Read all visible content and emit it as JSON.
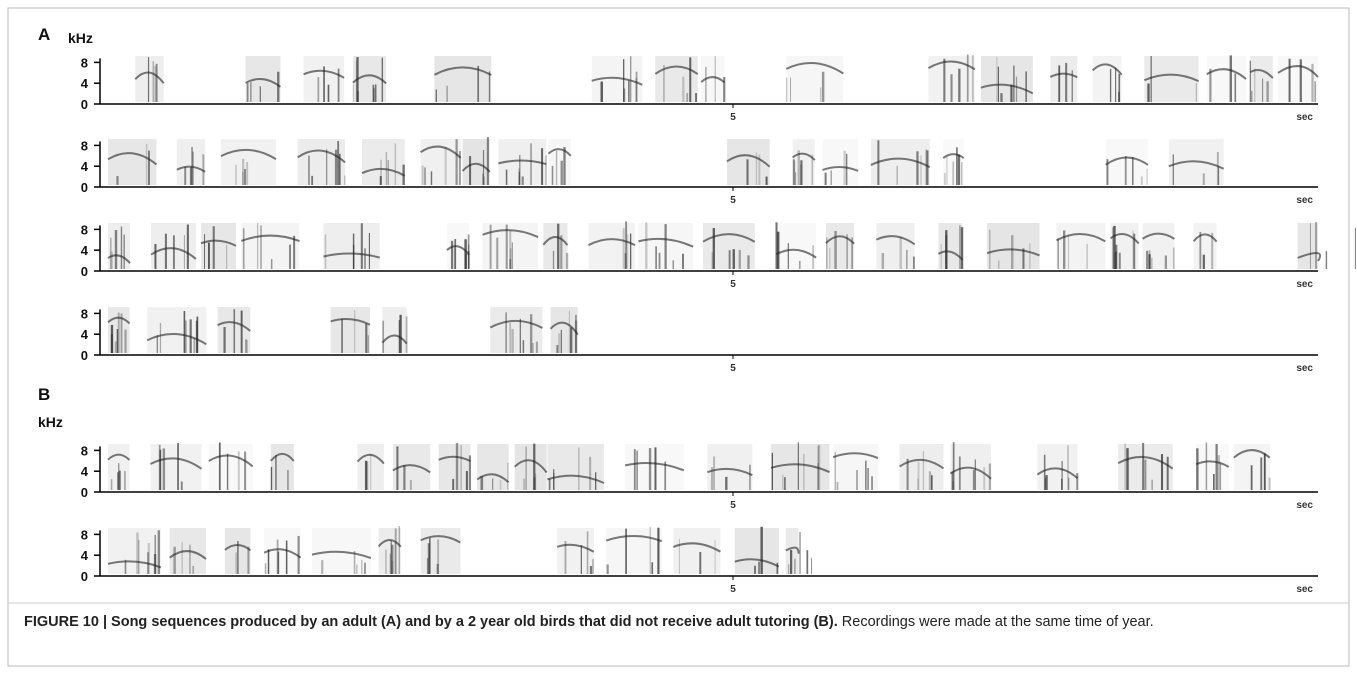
{
  "figure": {
    "panels": [
      {
        "label": "A",
        "axis_unit": "kHz",
        "rows": [
          {
            "yticks": [
              8,
              4,
              0
            ],
            "xtick": 5,
            "xunit": "sec"
          },
          {
            "yticks": [
              8,
              4,
              0
            ],
            "xtick": 5,
            "xunit": "sec"
          },
          {
            "yticks": [
              8,
              4,
              0
            ],
            "xtick": 5,
            "xunit": "sec"
          },
          {
            "yticks": [
              8,
              4,
              0
            ],
            "xtick": 5,
            "xunit": "sec"
          }
        ]
      },
      {
        "label": "B",
        "axis_unit": "kHz",
        "rows": [
          {
            "yticks": [
              8,
              4,
              0
            ],
            "xtick": 5,
            "xunit": "sec"
          },
          {
            "yticks": [
              8,
              4,
              0
            ],
            "xtick": 5,
            "xunit": "sec"
          }
        ]
      }
    ],
    "caption": {
      "title": "FIGURE 10 | Song sequences produced by an adult (A) and by a 2 year old birds that did not receive adult tutoring (B).",
      "text": "Recordings were made at the same time of year."
    }
  }
}
